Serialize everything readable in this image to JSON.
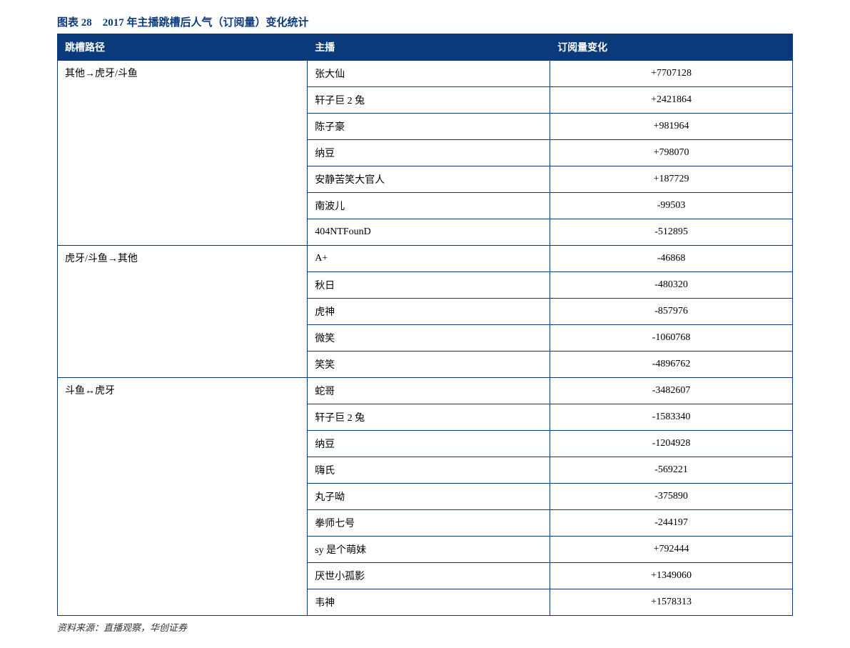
{
  "title": "图表 28　2017 年主播跳槽后人气（订阅量）变化统计",
  "columns": [
    "跳槽路径",
    "主播",
    "订阅量变化"
  ],
  "groups": [
    {
      "route": "其他→虎牙/斗鱼",
      "rows": [
        {
          "host": "张大仙",
          "change": "+7707128"
        },
        {
          "host": "轩子巨 2 兔",
          "change": "+2421864"
        },
        {
          "host": "陈子豪",
          "change": "+981964"
        },
        {
          "host": "纳豆",
          "change": "+798070"
        },
        {
          "host": "安静苦笑大官人",
          "change": "+187729"
        },
        {
          "host": "南波儿",
          "change": "-99503"
        },
        {
          "host": "404NTFounD",
          "change": "-512895"
        }
      ]
    },
    {
      "route": "虎牙/斗鱼→其他",
      "rows": [
        {
          "host": "A+",
          "change": "-46868"
        },
        {
          "host": "秋日",
          "change": "-480320"
        },
        {
          "host": "虎神",
          "change": "-857976"
        },
        {
          "host": "微笑",
          "change": "-1060768"
        },
        {
          "host": "笑笑",
          "change": "-4896762"
        }
      ]
    },
    {
      "route": "斗鱼↔虎牙",
      "rows": [
        {
          "host": "蛇哥",
          "change": "-3482607"
        },
        {
          "host": "轩子巨 2 兔",
          "change": "-1583340"
        },
        {
          "host": "纳豆",
          "change": "-1204928"
        },
        {
          "host": "嗨氏",
          "change": "-569221"
        },
        {
          "host": "丸子呦",
          "change": "-375890"
        },
        {
          "host": "拳师七号",
          "change": "-244197"
        },
        {
          "host": "sy 是个萌妹",
          "change": "+792444"
        },
        {
          "host": "厌世小孤影",
          "change": "+1349060"
        },
        {
          "host": "韦神",
          "change": "+1578313"
        }
      ]
    }
  ],
  "source": "资料来源：直播观察，华创证券",
  "style": {
    "header_bg": "#0a3a7a",
    "header_text": "#ffffff",
    "border_color": "#0a3a7a",
    "title_color": "#0a3a7a",
    "body_bg": "#ffffff",
    "font_size_body": 14,
    "font_size_title": 15,
    "column_widths_pct": [
      34,
      33,
      33
    ],
    "value_align": "center",
    "host_align": "left",
    "route_align": "left"
  }
}
